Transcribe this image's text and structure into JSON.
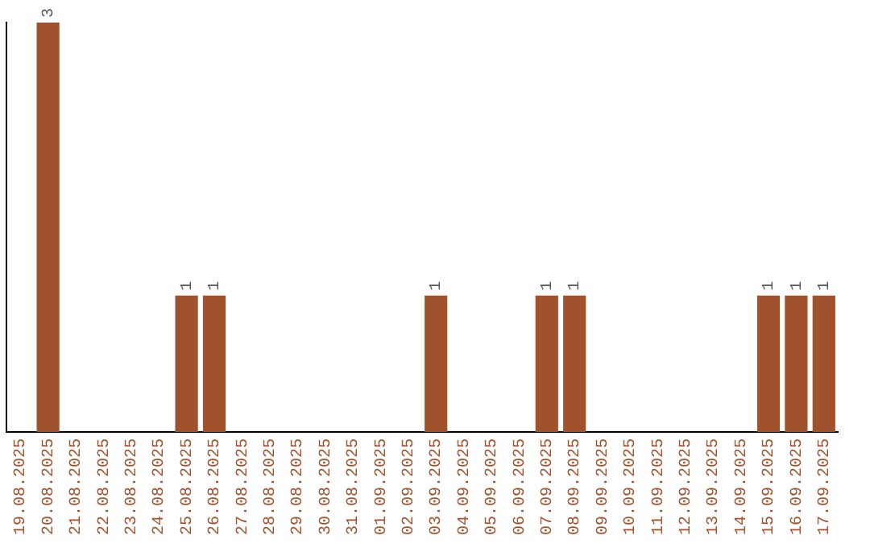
{
  "chart_data": {
    "type": "bar",
    "categories": [
      "19.08.2025",
      "20.08.2025",
      "21.08.2025",
      "22.08.2025",
      "23.08.2025",
      "24.08.2025",
      "25.08.2025",
      "26.08.2025",
      "27.08.2025",
      "28.08.2025",
      "29.08.2025",
      "30.08.2025",
      "31.08.2025",
      "01.09.2025",
      "02.09.2025",
      "03.09.2025",
      "04.09.2025",
      "05.09.2025",
      "06.09.2025",
      "07.09.2025",
      "08.09.2025",
      "09.09.2025",
      "10.09.2025",
      "11.09.2025",
      "12.09.2025",
      "13.09.2025",
      "14.09.2025",
      "15.09.2025",
      "16.09.2025",
      "17.09.2025"
    ],
    "values": [
      0,
      3,
      0,
      0,
      0,
      0,
      1,
      1,
      0,
      0,
      0,
      0,
      0,
      0,
      0,
      1,
      0,
      0,
      0,
      1,
      1,
      0,
      0,
      0,
      0,
      0,
      0,
      1,
      1,
      1
    ],
    "value_labels": [
      null,
      "3",
      null,
      null,
      null,
      null,
      "1",
      "1",
      null,
      null,
      null,
      null,
      null,
      null,
      null,
      "1",
      null,
      null,
      null,
      "1",
      "1",
      null,
      null,
      null,
      null,
      null,
      null,
      "1",
      "1",
      "1"
    ],
    "color": "#a0522d",
    "grid": false,
    "legend": false,
    "tick_labels": "x"
  }
}
